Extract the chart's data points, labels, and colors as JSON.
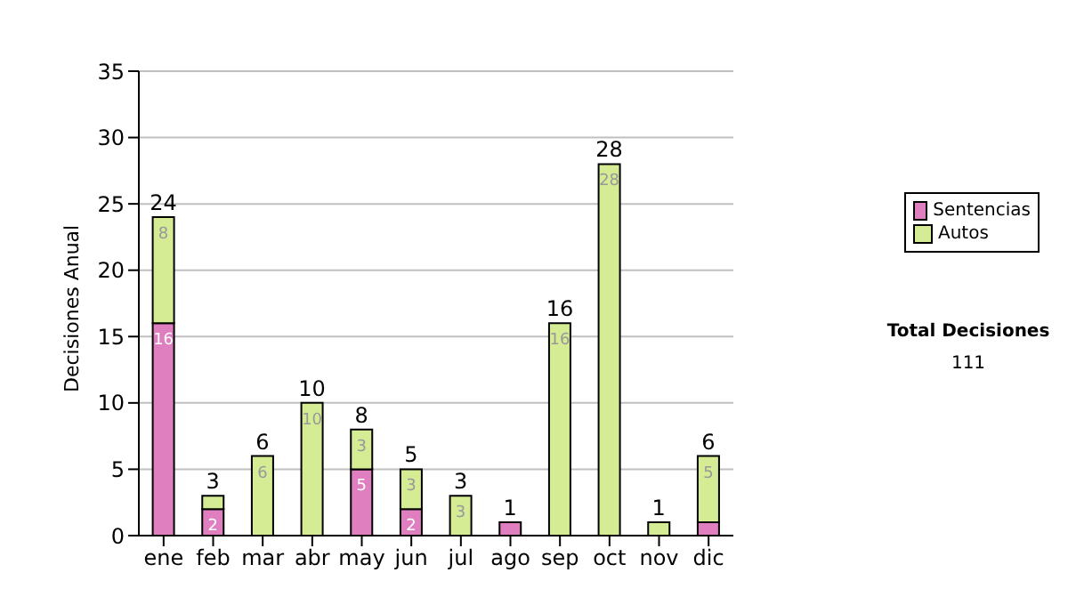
{
  "chart_data": {
    "type": "bar",
    "ylabel": "Decisiones Anual",
    "categories": [
      "ene",
      "feb",
      "mar",
      "abr",
      "may",
      "jun",
      "jul",
      "ago",
      "sep",
      "oct",
      "nov",
      "dic"
    ],
    "series": [
      {
        "name": "Sentencias",
        "color": "#df7fc0",
        "values": [
          16,
          2,
          0,
          0,
          5,
          2,
          0,
          1,
          0,
          0,
          0,
          1
        ],
        "value_labels": [
          "16",
          "2",
          null,
          null,
          "5",
          "2",
          null,
          null,
          null,
          null,
          null,
          null
        ]
      },
      {
        "name": "Autos",
        "color": "#d5ec95",
        "values": [
          8,
          1,
          6,
          10,
          3,
          3,
          3,
          0,
          16,
          28,
          1,
          5
        ],
        "value_labels": [
          "8",
          null,
          "6",
          "10",
          "3",
          "3",
          "3",
          null,
          "16",
          "28",
          null,
          "5"
        ]
      }
    ],
    "stacked": true,
    "totals": [
      "24",
      "3",
      "6",
      "10",
      "8",
      "5",
      "3",
      "1",
      "16",
      "28",
      "1",
      "6"
    ],
    "ylim": [
      0,
      35
    ],
    "yticks": [
      0,
      5,
      10,
      15,
      20,
      25,
      30,
      35
    ],
    "grid": "y",
    "legend": "right",
    "annotations": [
      "Total Decisiones",
      "111"
    ]
  }
}
